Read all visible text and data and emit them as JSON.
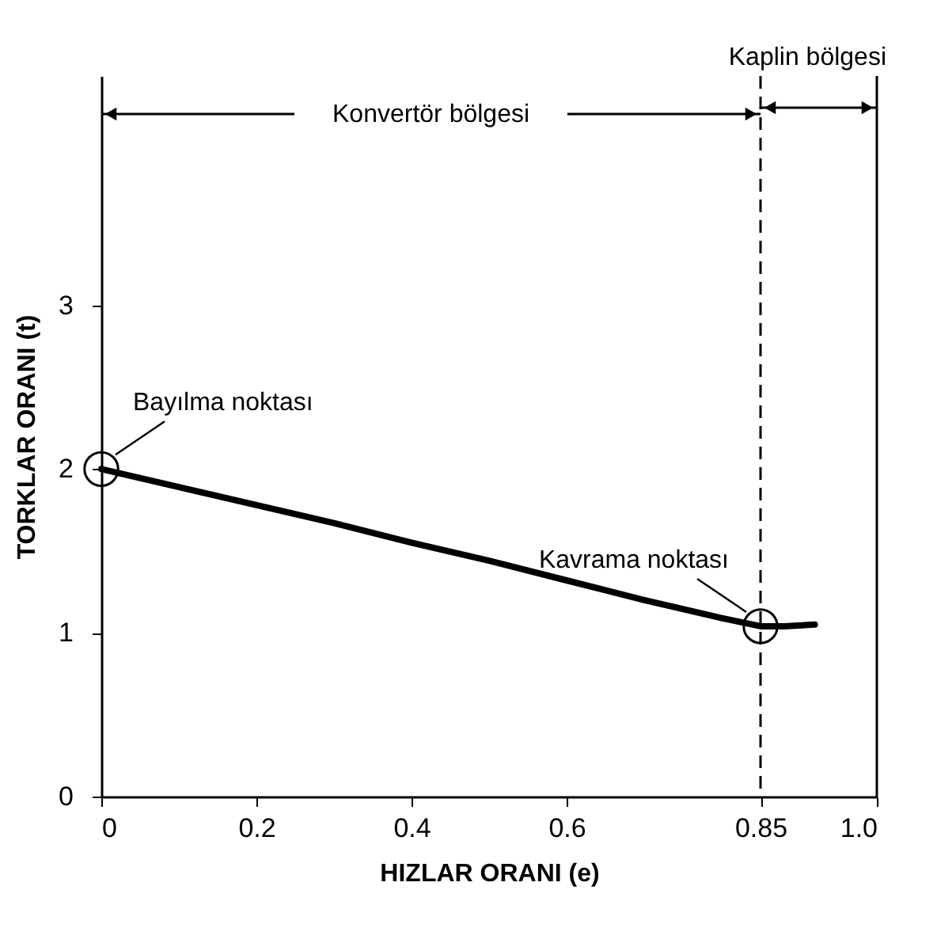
{
  "chart_data": {
    "type": "line",
    "xlabel": "HIZLAR ORANI (e)",
    "ylabel": "TORKLAR ORANI (t)",
    "series": [
      {
        "color": "#000000",
        "x": [
          0,
          0.1,
          0.2,
          0.3,
          0.4,
          0.5,
          0.6,
          0.7,
          0.8,
          0.85,
          0.88,
          0.92
        ],
        "values": [
          2,
          1.89,
          1.78,
          1.67,
          1.55,
          1.44,
          1.32,
          1.2,
          1.09,
          1.04,
          1.04,
          1.05
        ]
      }
    ],
    "xlim": [
      0,
      1
    ],
    "xticks": [
      0,
      0.2,
      0.4,
      0.6,
      0.85,
      {
        "value": 1,
        "label": "1.0"
      }
    ],
    "ylim": [
      0,
      4.4
    ],
    "yticks": [
      0,
      1,
      2,
      3
    ],
    "grid": false,
    "ref_lines": [
      {
        "axis": "x",
        "value": 0.85,
        "line_style": "dashed"
      },
      {
        "axis": "x",
        "value": 1,
        "line_style": "solid"
      }
    ],
    "annotations": [
      "Konvertör bölgesi",
      "Kaplin bölgesi",
      {
        "text": "Bayılma noktası",
        "x": 0,
        "y": 2
      },
      {
        "text": "Kavrama noktası",
        "x": 0.85,
        "y": 1.04
      }
    ]
  }
}
